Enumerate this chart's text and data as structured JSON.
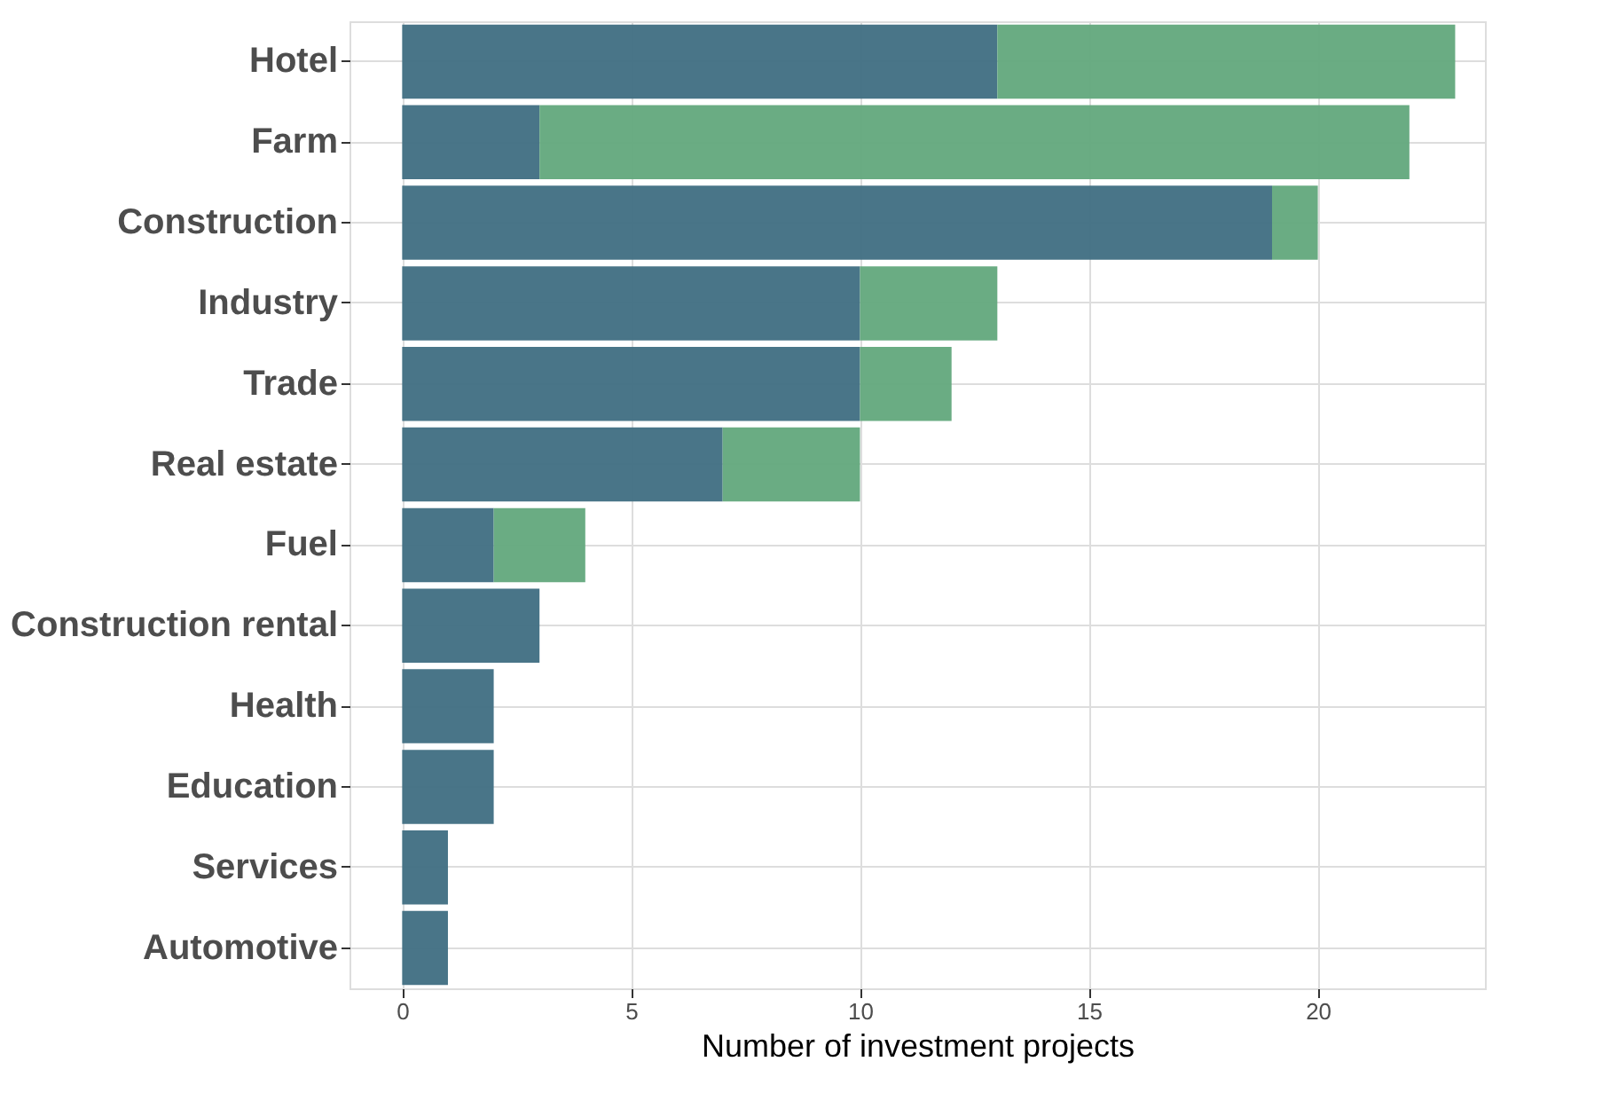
{
  "chart_data": {
    "type": "bar",
    "orientation": "horizontal",
    "stacked": true,
    "xlabel": "Number of investment projects",
    "categories": [
      "Hotel",
      "Farm",
      "Construction",
      "Industry",
      "Trade",
      "Real estate",
      "Fuel",
      "Construction rental",
      "Health",
      "Education",
      "Services",
      "Automotive"
    ],
    "series": [
      {
        "color": "#3f6e82",
        "values": [
          13,
          3,
          19,
          10,
          10,
          7,
          2,
          3,
          2,
          2,
          1,
          1
        ]
      },
      {
        "color": "#62a87c",
        "values": [
          10,
          19,
          1,
          3,
          2,
          3,
          2,
          0,
          0,
          0,
          0,
          0
        ]
      }
    ],
    "xlim": [
      -1.15,
      23.65
    ],
    "xticks": [
      0,
      5,
      10,
      15,
      20
    ],
    "grid": true,
    "legend": false
  }
}
